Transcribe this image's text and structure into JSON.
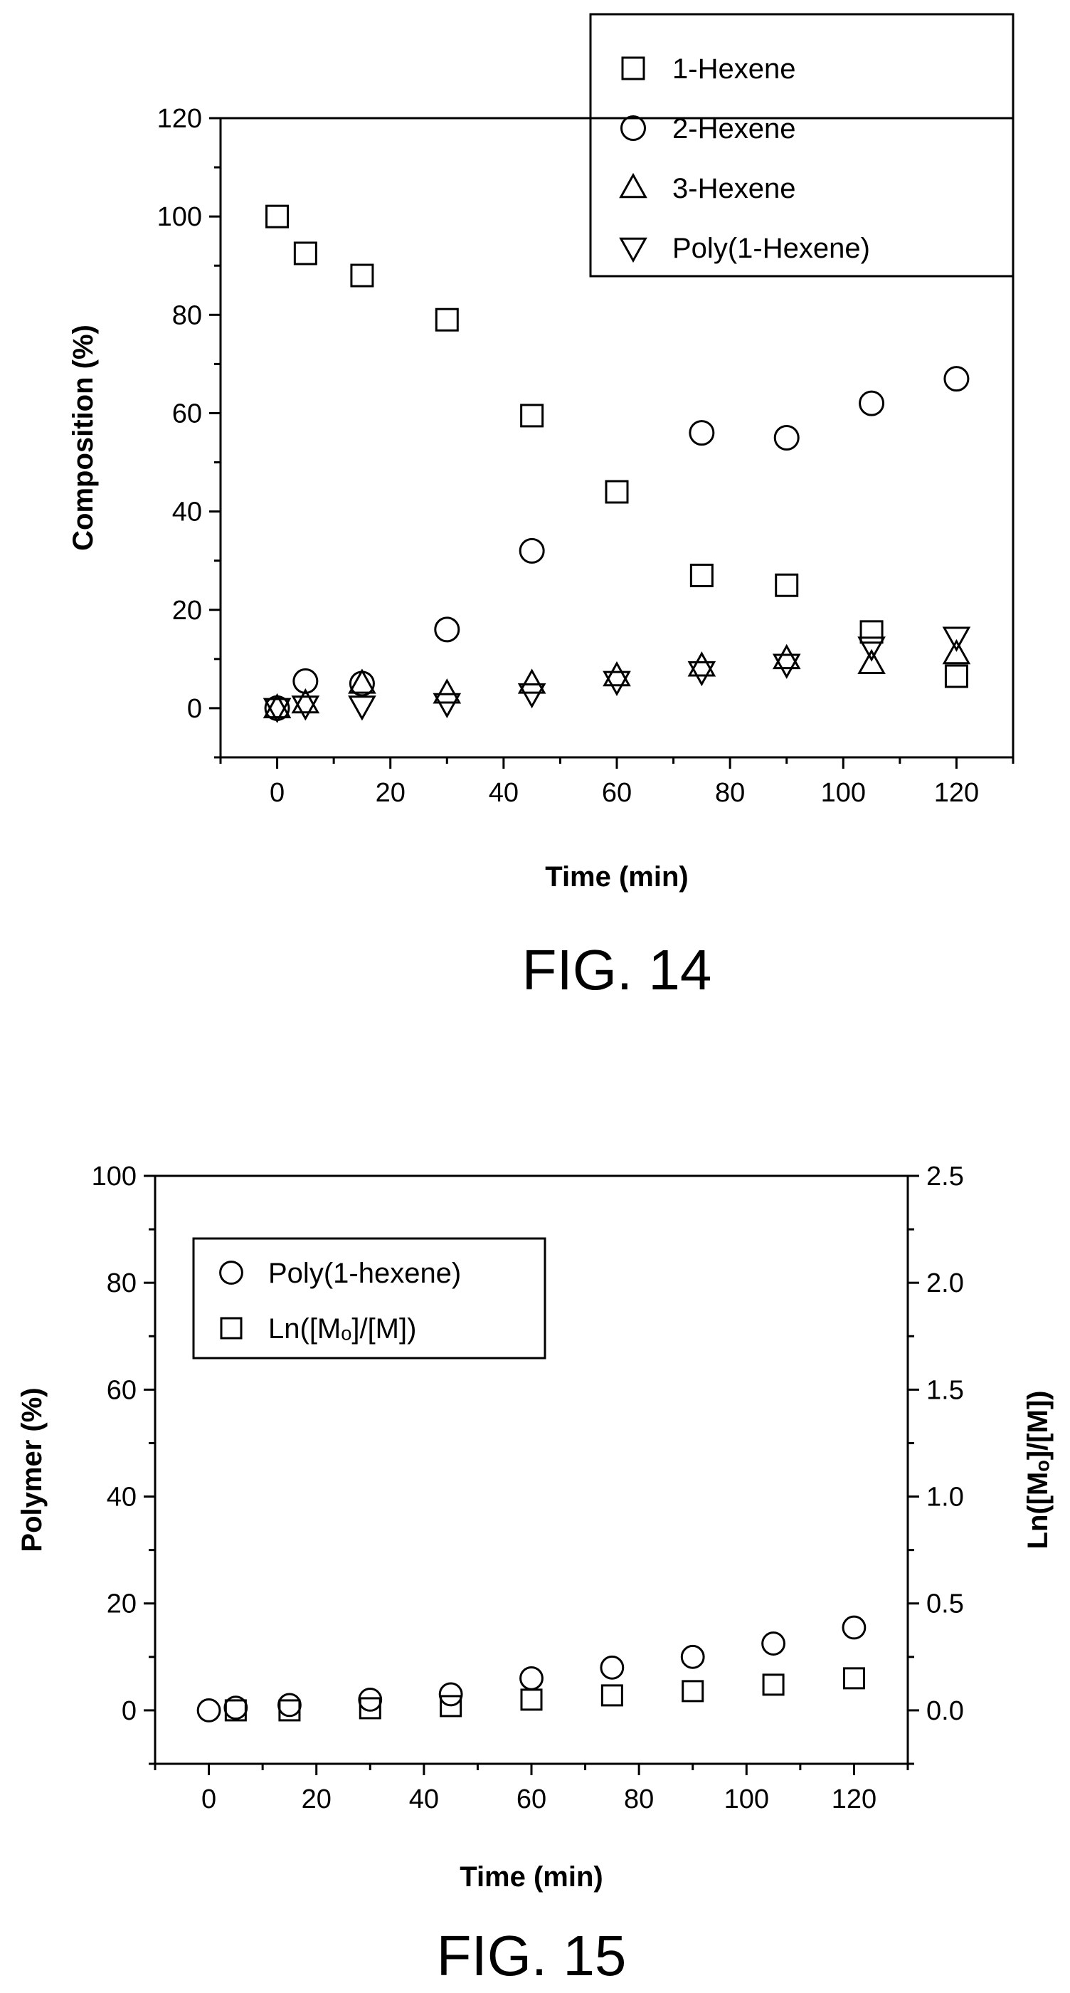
{
  "chart_data": [
    {
      "type": "scatter",
      "caption": "FIG. 14",
      "xlabel": "Time (min)",
      "ylabel": "Composition (%)",
      "xlim": [
        -10,
        130
      ],
      "ylim": [
        -10,
        120
      ],
      "xticks": [
        0,
        20,
        40,
        60,
        80,
        100,
        120
      ],
      "yticks": [
        0,
        20,
        40,
        60,
        80,
        100,
        120
      ],
      "x_minor_step": 10,
      "y_minor_step": 10,
      "legend_position": "top-right",
      "series": [
        {
          "name": "1-Hexene",
          "marker": "square",
          "x": [
            0,
            5,
            15,
            30,
            45,
            60,
            75,
            90,
            105,
            120
          ],
          "y": [
            100,
            92.5,
            88,
            79,
            59.5,
            44,
            27,
            25,
            15.5,
            6.5
          ]
        },
        {
          "name": "2-Hexene",
          "marker": "circle",
          "x": [
            0,
            5,
            15,
            30,
            45,
            75,
            90,
            105,
            120
          ],
          "y": [
            0,
            5.5,
            5,
            16,
            32,
            56,
            55,
            62,
            67
          ]
        },
        {
          "name": "3-Hexene",
          "marker": "triangle-up",
          "x": [
            0,
            5,
            15,
            30,
            45,
            60,
            75,
            90,
            105,
            120
          ],
          "y": [
            0,
            1,
            5,
            3,
            5,
            6.5,
            8.5,
            10,
            9,
            11
          ]
        },
        {
          "name": "Poly(1-Hexene)",
          "marker": "triangle-down",
          "x": [
            0,
            5,
            15,
            30,
            45,
            60,
            75,
            90,
            105,
            120
          ],
          "y": [
            0,
            0.5,
            0.5,
            1,
            3,
            5.5,
            7.5,
            9,
            12.5,
            14.5
          ]
        }
      ]
    },
    {
      "type": "scatter",
      "caption": "FIG. 15",
      "xlabel": "Time (min)",
      "ylabel": "Polymer (%)",
      "y2label": "Ln([Mₒ]/[M])",
      "xlim": [
        -10,
        130
      ],
      "ylim": [
        -10,
        100
      ],
      "y2lim": [
        -0.25,
        2.5
      ],
      "xticks": [
        0,
        20,
        40,
        60,
        80,
        100,
        120
      ],
      "yticks": [
        0,
        20,
        40,
        60,
        80,
        100
      ],
      "y2ticks": [
        "0.0",
        "0.5",
        "1.0",
        "1.5",
        "2.0",
        "2.5"
      ],
      "x_minor_step": 10,
      "y_minor_step": 10,
      "y2_minor_step": 0.25,
      "legend_position": "top-left",
      "series": [
        {
          "name": "Poly(1-hexene)",
          "marker": "circle",
          "axis": "left",
          "x": [
            0,
            5,
            15,
            30,
            45,
            60,
            75,
            90,
            105,
            120
          ],
          "y": [
            0,
            0.5,
            1,
            2,
            3,
            6,
            8,
            10,
            12.5,
            15.5
          ]
        },
        {
          "name": "Ln([Mₒ]/[M])",
          "marker": "square",
          "axis": "right",
          "x": [
            5,
            15,
            30,
            45,
            60,
            75,
            90,
            105,
            120
          ],
          "y": [
            0.0,
            0.0,
            0.01,
            0.02,
            0.05,
            0.07,
            0.09,
            0.12,
            0.15
          ]
        }
      ]
    }
  ]
}
